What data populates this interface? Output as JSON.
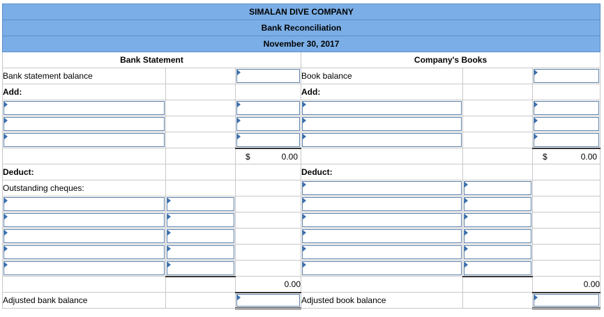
{
  "header": {
    "company": "SIMALAN DIVE COMPANY",
    "title": "Bank Reconciliation",
    "date": "November 30, 2017"
  },
  "bank": {
    "section_title": "Bank Statement",
    "balance_label": "Bank statement balance",
    "add_label": "Add:",
    "subtotal_currency": "$",
    "subtotal_value": "0.00",
    "deduct_label": "Deduct:",
    "outstanding_label": "Outstanding cheques:",
    "deduct_total_value": "0.00",
    "adjusted_label": "Adjusted bank balance"
  },
  "books": {
    "section_title": "Company's Books",
    "balance_label": "Book balance",
    "add_label": "Add:",
    "subtotal_currency": "$",
    "subtotal_value": "0.00",
    "deduct_label": "Deduct:",
    "deduct_total_value": "0.00",
    "adjusted_label": "Adjusted book balance"
  }
}
